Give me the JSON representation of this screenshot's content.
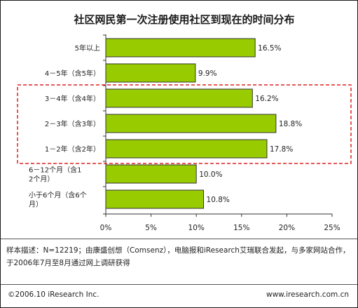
{
  "chart_data": {
    "type": "bar",
    "orientation": "horizontal",
    "title": "社区网民第一次注册使用社区到现在的时间分布",
    "categories": [
      "5年以上",
      "4－5年（含5年）",
      "3－4年（含4年）",
      "2－3年（含3年）",
      "1－2年（含2年）",
      "6－12个月（含12个月）",
      "小于6个月（含6个月）"
    ],
    "values": [
      16.5,
      9.9,
      16.2,
      18.8,
      17.8,
      10.0,
      10.8
    ],
    "value_labels": [
      "16.5%",
      "9.9%",
      "16.2%",
      "18.8%",
      "17.8%",
      "10.0%",
      "10.8%"
    ],
    "xlim": [
      0,
      25
    ],
    "x_ticks": [
      "0%",
      "5%",
      "10%",
      "15%",
      "20%",
      "25%"
    ],
    "grid": false,
    "bar_color": "#99cc00",
    "highlight_categories": [
      "3－4年（含4年）",
      "2－3年（含3年）",
      "1－2年（含2年）"
    ],
    "highlight_color": "#e02020"
  },
  "note": "样本描述：N=12219；由康盛创想（Comsenz），电脑报和iResearch艾瑞联合发起，与多家网站合作，于2006年7月至8月通过网上调研获得",
  "copyright": "©2006.10 iResearch Inc.",
  "website": "www.iresearch.com.cn"
}
